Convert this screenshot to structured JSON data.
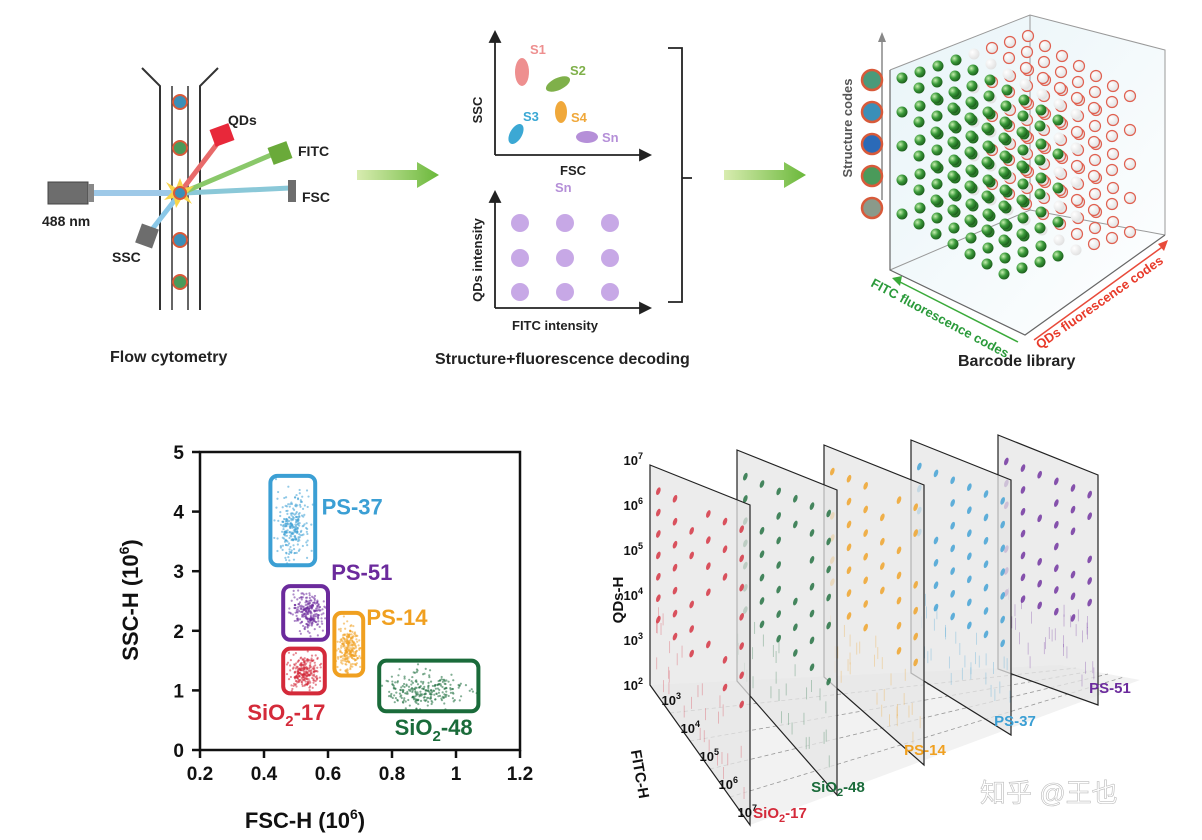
{
  "flow": {
    "caption": "Flow cytometry",
    "laser": "488 nm",
    "det_qds": "QDs",
    "det_fitc": "FITC",
    "det_fsc": "FSC",
    "det_ssc": "SSC"
  },
  "decode": {
    "caption": "Structure+fluorescence decoding",
    "top_xlabel": "FSC",
    "top_ylabel": "SSC",
    "bottom_xlabel": "FITC intensity",
    "bottom_ylabel": "QDs intensity",
    "bottom_label": "Sn",
    "groups": [
      {
        "name": "S1",
        "color": "#ee8f8f"
      },
      {
        "name": "S2",
        "color": "#7fb04a"
      },
      {
        "name": "S3",
        "color": "#3ba8d4"
      },
      {
        "name": "S4",
        "color": "#f0a83a"
      },
      {
        "name": "Sn",
        "color": "#b58fd8"
      }
    ]
  },
  "library": {
    "caption": "Barcode library",
    "axis_structure": "Structure codes",
    "axis_fitc": "FITC fluorescence codes",
    "axis_qds": "QDs fluorescence codes"
  },
  "scatter": {
    "xlabel_main": "FSC-H (10",
    "xlabel_exp": "6",
    "xlabel_end": ")",
    "ylabel_main": "SSC-H (10",
    "ylabel_exp": "6",
    "ylabel_end": ")"
  },
  "chart_data": {
    "type": "scatter",
    "xlim": [
      0.2,
      1.2
    ],
    "ylim": [
      0,
      5
    ],
    "x_ticks": [
      "0.2",
      "0.4",
      "0.6",
      "0.8",
      "1",
      "1.2"
    ],
    "y_ticks": [
      "0",
      "1",
      "2",
      "3",
      "4",
      "5"
    ],
    "clusters": [
      {
        "name": "PS-37",
        "color": "#3b9fd4",
        "x": [
          0.42,
          0.56
        ],
        "y": [
          3.1,
          4.6
        ],
        "center": [
          0.49,
          3.75
        ]
      },
      {
        "name": "PS-51",
        "color": "#6b2a9c",
        "x": [
          0.46,
          0.6
        ],
        "y": [
          1.85,
          2.75
        ],
        "center": [
          0.54,
          2.3
        ]
      },
      {
        "name": "PS-14",
        "color": "#f0a020",
        "x": [
          0.62,
          0.71
        ],
        "y": [
          1.25,
          2.3
        ],
        "center": [
          0.665,
          1.7
        ]
      },
      {
        "name": "SiO2-17",
        "label_pre": "SiO",
        "label_sub": "2",
        "label_post": "-17",
        "color": "#d42a3a",
        "x": [
          0.46,
          0.59
        ],
        "y": [
          0.95,
          1.7
        ],
        "center": [
          0.525,
          1.3
        ]
      },
      {
        "name": "SiO2-48",
        "label_pre": "SiO",
        "label_sub": "2",
        "label_post": "-48",
        "color": "#1a6b3a",
        "x": [
          0.76,
          1.07
        ],
        "y": [
          0.65,
          1.5
        ],
        "center": [
          0.9,
          1.0
        ]
      }
    ]
  },
  "plot3d": {
    "ylabel": "QDs-H",
    "zlabel": "FITC-H",
    "y_ticks": [
      {
        "b": "10",
        "e": "2"
      },
      {
        "b": "10",
        "e": "3"
      },
      {
        "b": "10",
        "e": "4"
      },
      {
        "b": "10",
        "e": "5"
      },
      {
        "b": "10",
        "e": "6"
      },
      {
        "b": "10",
        "e": "7"
      }
    ],
    "z_ticks": [
      {
        "b": "10",
        "e": "3"
      },
      {
        "b": "10",
        "e": "4"
      },
      {
        "b": "10",
        "e": "5"
      },
      {
        "b": "10",
        "e": "6"
      },
      {
        "b": "10",
        "e": "7"
      }
    ],
    "panels": [
      {
        "name": "SiO2-17",
        "pre": "SiO",
        "sub": "2",
        "post": "-17",
        "color": "#d42a3a"
      },
      {
        "name": "SiO2-48",
        "pre": "SiO",
        "sub": "2",
        "post": "-48",
        "color": "#1a6b3a"
      },
      {
        "name": "PS-14",
        "pre": "PS-14",
        "sub": "",
        "post": "",
        "color": "#f0a020"
      },
      {
        "name": "PS-37",
        "pre": "PS-37",
        "sub": "",
        "post": "",
        "color": "#3b9fd4"
      },
      {
        "name": "PS-51",
        "pre": "PS-51",
        "sub": "",
        "post": "",
        "color": "#6b2a9c"
      }
    ]
  },
  "watermark": "知乎 @王也"
}
